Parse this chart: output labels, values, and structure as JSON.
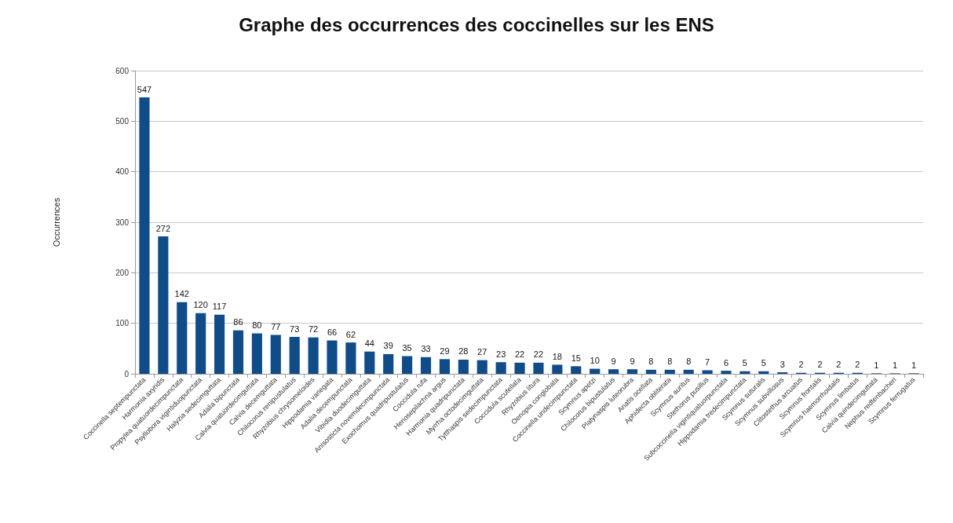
{
  "chart_data": {
    "type": "bar",
    "title": "Graphe des occurrences des coccinelles sur les ENS",
    "ylabel": "Occurrences",
    "categories": [
      "Coccinella septempunctata",
      "Harmonia axyridis",
      "Propylea quatuordecimpunctata",
      "Psyllobora vigintiduopunctata",
      "Halyzia sedecimguttata",
      "Adalia bipunctata",
      "Calvia quatuordecimguttata",
      "Calvia decemguttata",
      "Chilocorus renipustulatus",
      "Rhyzobius chrysomeloides",
      "Hippodamia variegata",
      "Adalia decempunctata",
      "Vibidia duodecimguttata",
      "Anisosticta novemdecimpunctata",
      "Exochomus quadripustulatus",
      "Coccidula rufa",
      "Henosepilachna argus",
      "Harmonia quadripunctata",
      "Myrrha octodecimguttata",
      "Tytthaspis sedecimpunctata",
      "Coccidula scutellata",
      "Rhyzobius litura",
      "Oenopia conglobata",
      "Coccinella undecimpunctata",
      "Scymnus apetzi",
      "Chilocorus bipustulatus",
      "Platynaspis luteorubra",
      "Anatis ocellata",
      "Aphidecta obliterata",
      "Scymnus auritus",
      "Stethorus pusillus",
      "Subcoccinella vigintiquatuorpunctata",
      "Hippodamia tredecimpunctata",
      "Scymnus suturalis",
      "Scymnus subvillosus",
      "Clitostethus arcuatus",
      "Scymnus frontalis",
      "Scymnus haemorrhoidalis",
      "Scymnus limbatus",
      "Calvia quindecimguttata",
      "Nephus redtenbacheri",
      "Scymnus ferrugatus"
    ],
    "values": [
      547,
      272,
      142,
      120,
      117,
      86,
      80,
      77,
      73,
      72,
      66,
      62,
      44,
      39,
      35,
      33,
      29,
      28,
      27,
      23,
      22,
      22,
      18,
      15,
      10,
      9,
      9,
      8,
      8,
      8,
      7,
      6,
      5,
      5,
      3,
      2,
      2,
      2,
      2,
      1,
      1,
      1
    ],
    "color": "#0f4c8a",
    "ylim": [
      0,
      600
    ],
    "yticks": [
      0,
      100,
      200,
      300,
      400,
      500,
      600
    ],
    "grid": "y",
    "data_labels": true
  }
}
